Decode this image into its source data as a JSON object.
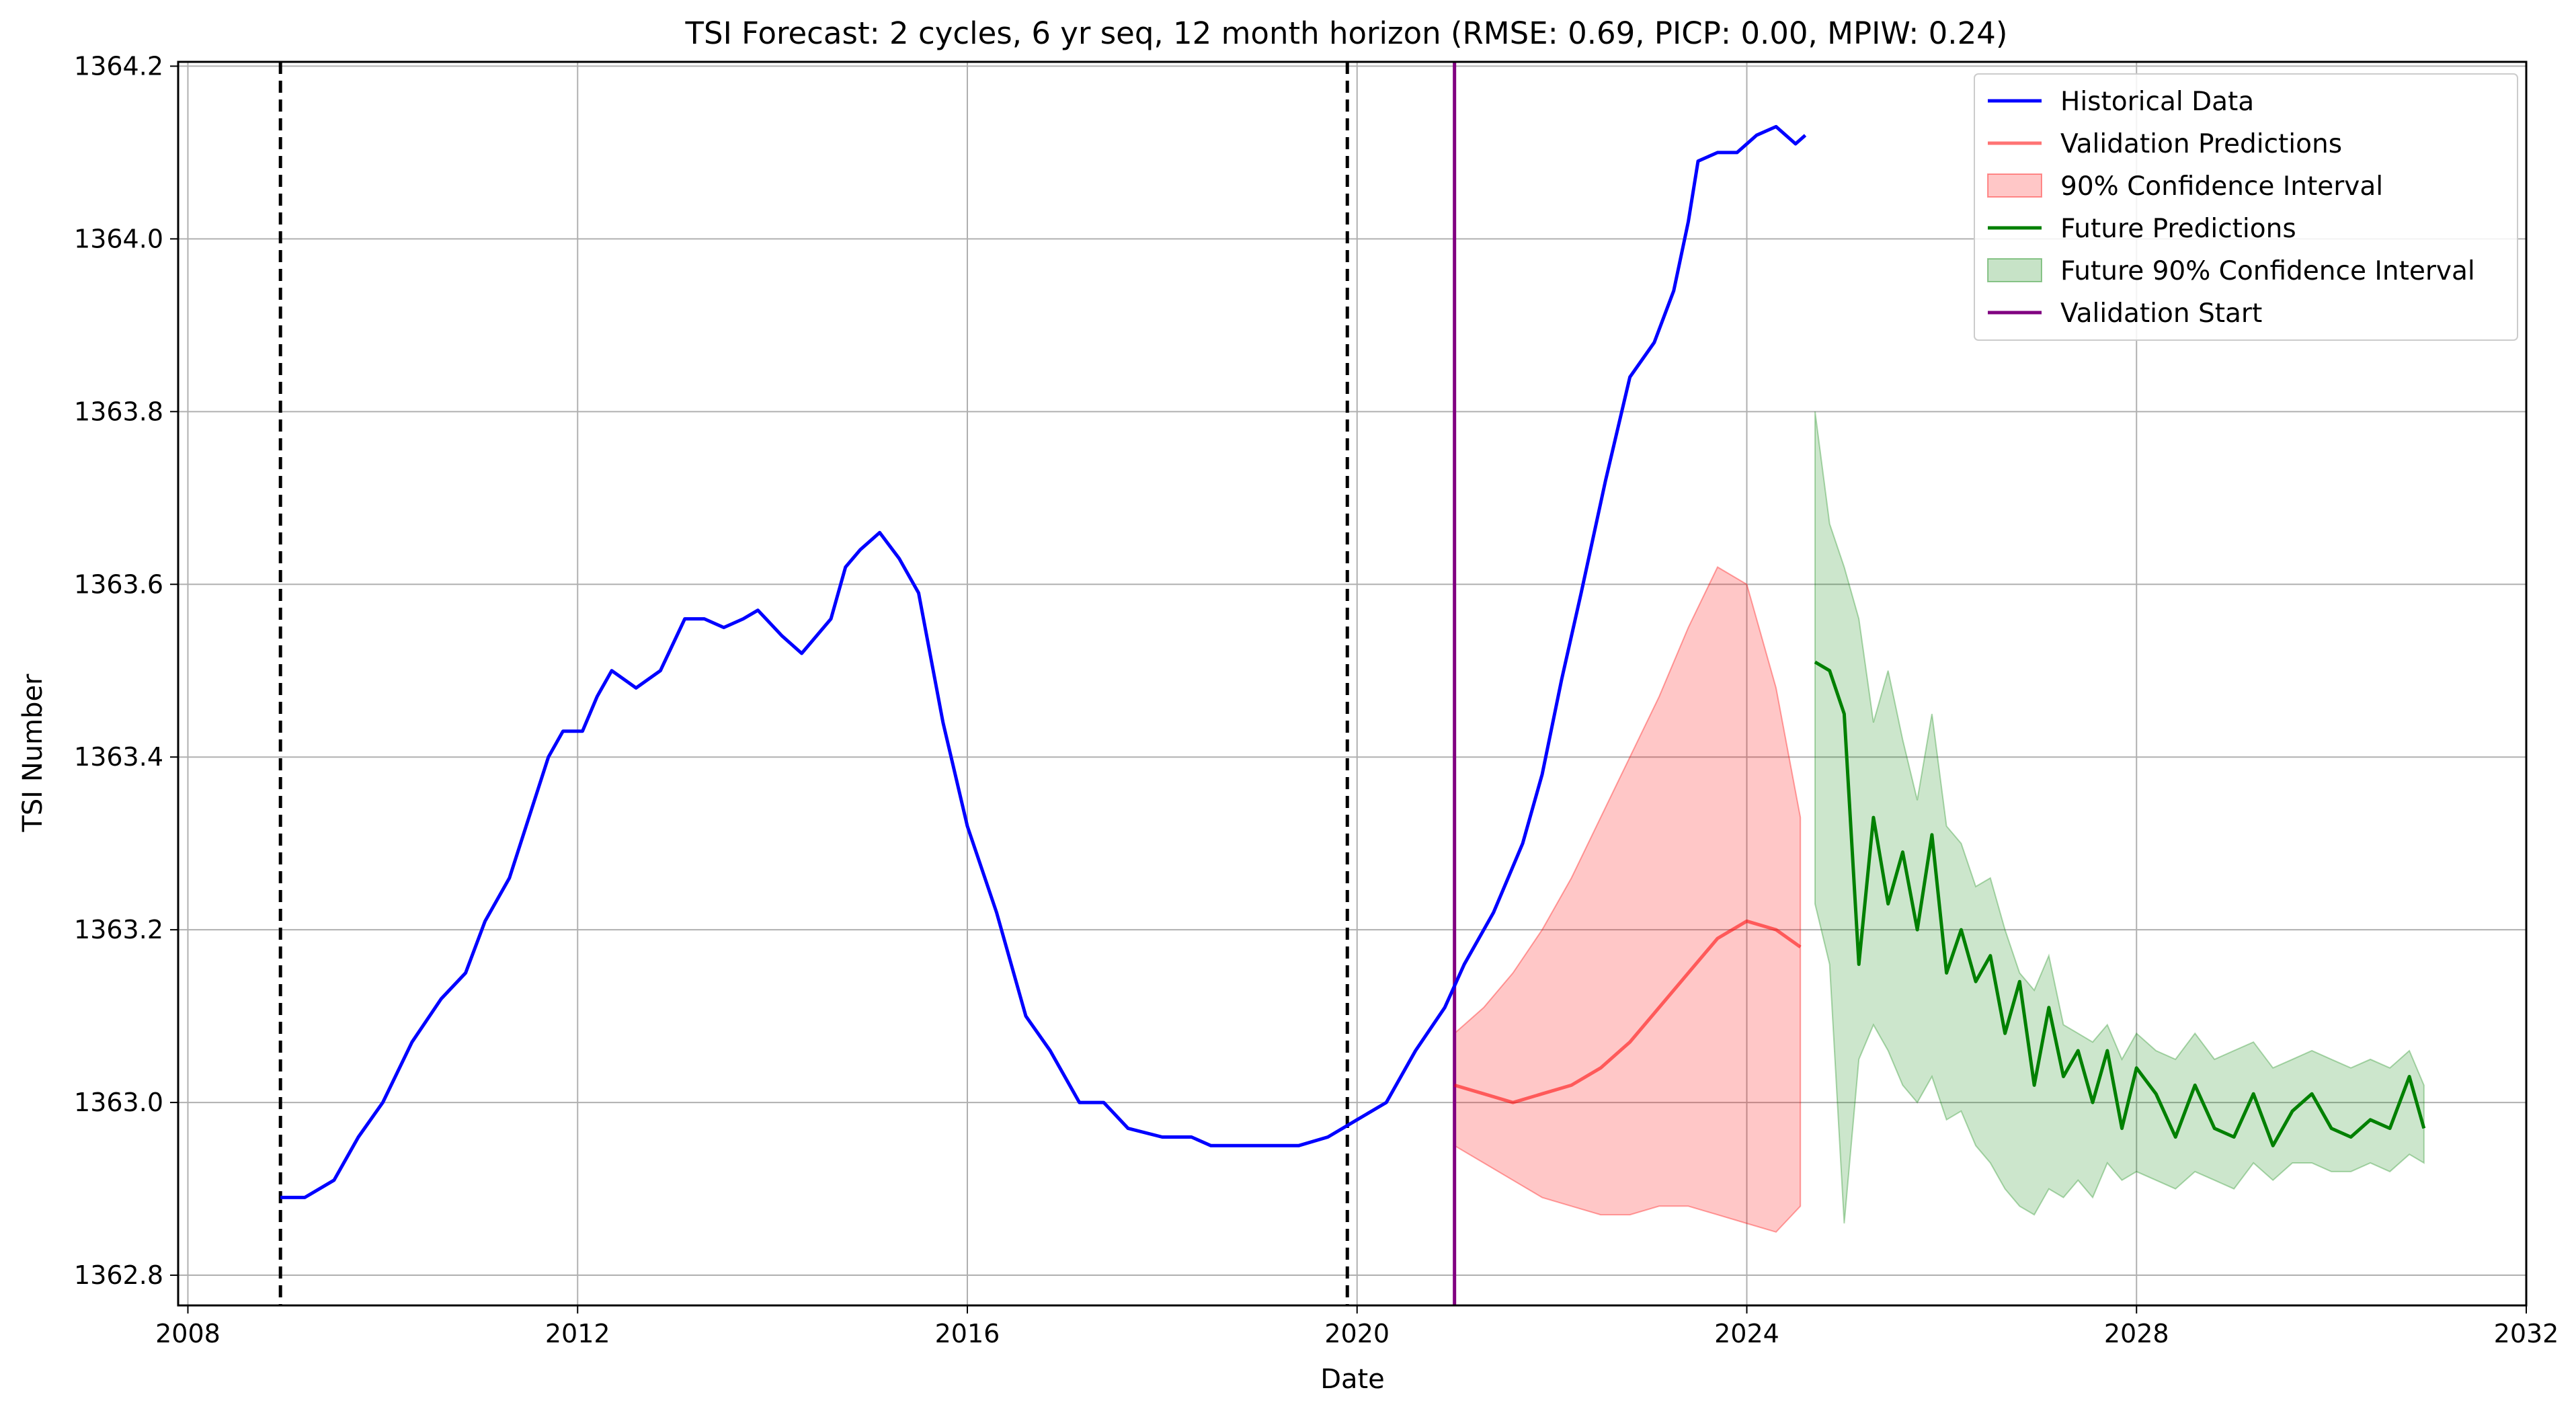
{
  "chart_data": {
    "type": "line",
    "title": "TSI Forecast: 2 cycles, 6 yr seq, 12 month horizon (RMSE: 0.69, PICP: 0.00, MPIW: 0.24)",
    "xlabel": "Date",
    "ylabel": "TSI Number",
    "xlim": [
      2007.9,
      2032
    ],
    "ylim": [
      1362.765,
      1364.205
    ],
    "x_ticks": [
      2008,
      2012,
      2016,
      2020,
      2024,
      2028,
      2032
    ],
    "y_ticks": [
      1362.8,
      1363.0,
      1363.2,
      1363.4,
      1363.6,
      1363.8,
      1364.0,
      1364.2
    ],
    "x_tick_labels": [
      "2008",
      "2012",
      "2016",
      "2020",
      "2024",
      "2028",
      "2032"
    ],
    "y_tick_labels": [
      "1362.8",
      "1363.0",
      "1363.2",
      "1363.4",
      "1363.6",
      "1363.8",
      "1364.0",
      "1364.2"
    ],
    "grid": true,
    "legend_position": "top-right",
    "vlines": [
      {
        "x": 2008.95,
        "style": "dashed",
        "color": "#000000"
      },
      {
        "x": 2019.9,
        "style": "dashed",
        "color": "#000000"
      },
      {
        "x": 2021.0,
        "style": "solid",
        "color": "#800080"
      }
    ],
    "series": [
      {
        "name": "Historical Data",
        "color": "#0000ff",
        "x": [
          2008.95,
          2009.2,
          2009.5,
          2009.75,
          2010.0,
          2010.3,
          2010.6,
          2010.85,
          2011.05,
          2011.3,
          2011.5,
          2011.7,
          2011.85,
          2012.05,
          2012.2,
          2012.35,
          2012.6,
          2012.85,
          2013.1,
          2013.3,
          2013.5,
          2013.7,
          2013.85,
          2014.1,
          2014.3,
          2014.6,
          2014.75,
          2014.9,
          2015.1,
          2015.3,
          2015.5,
          2015.75,
          2016.0,
          2016.3,
          2016.6,
          2016.85,
          2017.15,
          2017.4,
          2017.65,
          2018.0,
          2018.3,
          2018.5,
          2018.8,
          2019.1,
          2019.4,
          2019.7,
          2020.0,
          2020.3,
          2020.6,
          2020.9,
          2021.1,
          2021.4,
          2021.7,
          2021.9,
          2022.1,
          2022.3,
          2022.55,
          2022.8,
          2023.05,
          2023.25,
          2023.4,
          2023.5,
          2023.7,
          2023.9,
          2024.1,
          2024.3,
          2024.5,
          2024.6
        ],
        "y": [
          1362.89,
          1362.89,
          1362.91,
          1362.96,
          1363.0,
          1363.07,
          1363.12,
          1363.15,
          1363.21,
          1363.26,
          1363.33,
          1363.4,
          1363.43,
          1363.43,
          1363.47,
          1363.5,
          1363.48,
          1363.5,
          1363.56,
          1363.56,
          1363.55,
          1363.56,
          1363.57,
          1363.54,
          1363.52,
          1363.56,
          1363.62,
          1363.64,
          1363.66,
          1363.63,
          1363.59,
          1363.44,
          1363.32,
          1363.22,
          1363.1,
          1363.06,
          1363.0,
          1363.0,
          1362.97,
          1362.96,
          1362.96,
          1362.95,
          1362.95,
          1362.95,
          1362.95,
          1362.96,
          1362.98,
          1363.0,
          1363.06,
          1363.11,
          1363.16,
          1363.22,
          1363.3,
          1363.38,
          1363.49,
          1363.59,
          1363.72,
          1363.84,
          1363.88,
          1363.94,
          1364.02,
          1364.09,
          1364.1,
          1364.1,
          1364.12,
          1364.13,
          1364.11,
          1364.12
        ]
      },
      {
        "name": "Validation Predictions",
        "color": "#ff0000",
        "x": [
          2021.0,
          2021.3,
          2021.6,
          2021.9,
          2022.2,
          2022.5,
          2022.8,
          2023.1,
          2023.4,
          2023.7,
          2024.0,
          2024.3,
          2024.55
        ],
        "y": [
          1363.02,
          1363.01,
          1363.0,
          1363.01,
          1363.02,
          1363.04,
          1363.07,
          1363.11,
          1363.15,
          1363.19,
          1363.21,
          1363.2,
          1363.18
        ]
      },
      {
        "name": "90% Confidence Interval",
        "color": "#ff0000",
        "x": [
          2021.0,
          2021.3,
          2021.6,
          2021.9,
          2022.2,
          2022.5,
          2022.8,
          2023.1,
          2023.4,
          2023.7,
          2024.0,
          2024.3,
          2024.55
        ],
        "lower": [
          1362.95,
          1362.93,
          1362.91,
          1362.89,
          1362.88,
          1362.87,
          1362.87,
          1362.88,
          1362.88,
          1362.87,
          1362.86,
          1362.85,
          1362.88
        ],
        "upper": [
          1363.08,
          1363.11,
          1363.15,
          1363.2,
          1363.26,
          1363.33,
          1363.4,
          1363.47,
          1363.55,
          1363.62,
          1363.6,
          1363.48,
          1363.33
        ]
      },
      {
        "name": "Future Predictions",
        "color": "#008000",
        "x": [
          2024.7,
          2024.85,
          2025.0,
          2025.15,
          2025.3,
          2025.45,
          2025.6,
          2025.75,
          2025.9,
          2026.05,
          2026.2,
          2026.35,
          2026.5,
          2026.65,
          2026.8,
          2026.95,
          2027.1,
          2027.25,
          2027.4,
          2027.55,
          2027.7,
          2027.85,
          2028.0,
          2028.2,
          2028.4,
          2028.6,
          2028.8,
          2029.0,
          2029.2,
          2029.4,
          2029.6,
          2029.8,
          2030.0,
          2030.2,
          2030.4,
          2030.6,
          2030.8,
          2030.95
        ],
        "y": [
          1363.51,
          1363.5,
          1363.45,
          1363.16,
          1363.33,
          1363.23,
          1363.29,
          1363.2,
          1363.31,
          1363.15,
          1363.2,
          1363.14,
          1363.17,
          1363.08,
          1363.14,
          1363.02,
          1363.11,
          1363.03,
          1363.06,
          1363.0,
          1363.06,
          1362.97,
          1363.04,
          1363.01,
          1362.96,
          1363.02,
          1362.97,
          1362.96,
          1363.01,
          1362.95,
          1362.99,
          1363.01,
          1362.97,
          1362.96,
          1362.98,
          1362.97,
          1363.03,
          1362.97
        ]
      },
      {
        "name": "Future 90% Confidence Interval",
        "color": "#008000",
        "x": [
          2024.7,
          2024.85,
          2025.0,
          2025.15,
          2025.3,
          2025.45,
          2025.6,
          2025.75,
          2025.9,
          2026.05,
          2026.2,
          2026.35,
          2026.5,
          2026.65,
          2026.8,
          2026.95,
          2027.1,
          2027.25,
          2027.4,
          2027.55,
          2027.7,
          2027.85,
          2028.0,
          2028.2,
          2028.4,
          2028.6,
          2028.8,
          2029.0,
          2029.2,
          2029.4,
          2029.6,
          2029.8,
          2030.0,
          2030.2,
          2030.4,
          2030.6,
          2030.8,
          2030.95
        ],
        "lower": [
          1363.23,
          1363.16,
          1362.86,
          1363.05,
          1363.09,
          1363.06,
          1363.02,
          1363.0,
          1363.03,
          1362.98,
          1362.99,
          1362.95,
          1362.93,
          1362.9,
          1362.88,
          1362.87,
          1362.9,
          1362.89,
          1362.91,
          1362.89,
          1362.93,
          1362.91,
          1362.92,
          1362.91,
          1362.9,
          1362.92,
          1362.91,
          1362.9,
          1362.93,
          1362.91,
          1362.93,
          1362.93,
          1362.92,
          1362.92,
          1362.93,
          1362.92,
          1362.94,
          1362.93
        ],
        "upper": [
          1363.8,
          1363.67,
          1363.62,
          1363.56,
          1363.44,
          1363.5,
          1363.42,
          1363.35,
          1363.45,
          1363.32,
          1363.3,
          1363.25,
          1363.26,
          1363.2,
          1363.15,
          1363.13,
          1363.17,
          1363.09,
          1363.08,
          1363.07,
          1363.09,
          1363.05,
          1363.08,
          1363.06,
          1363.05,
          1363.08,
          1363.05,
          1363.06,
          1363.07,
          1363.04,
          1363.05,
          1363.06,
          1363.05,
          1363.04,
          1363.05,
          1363.04,
          1363.06,
          1363.02
        ]
      },
      {
        "name": "Validation Start",
        "color": "#800080",
        "x": [
          2021.0,
          2021.0
        ],
        "y": [
          1362.765,
          1364.205
        ]
      }
    ]
  }
}
